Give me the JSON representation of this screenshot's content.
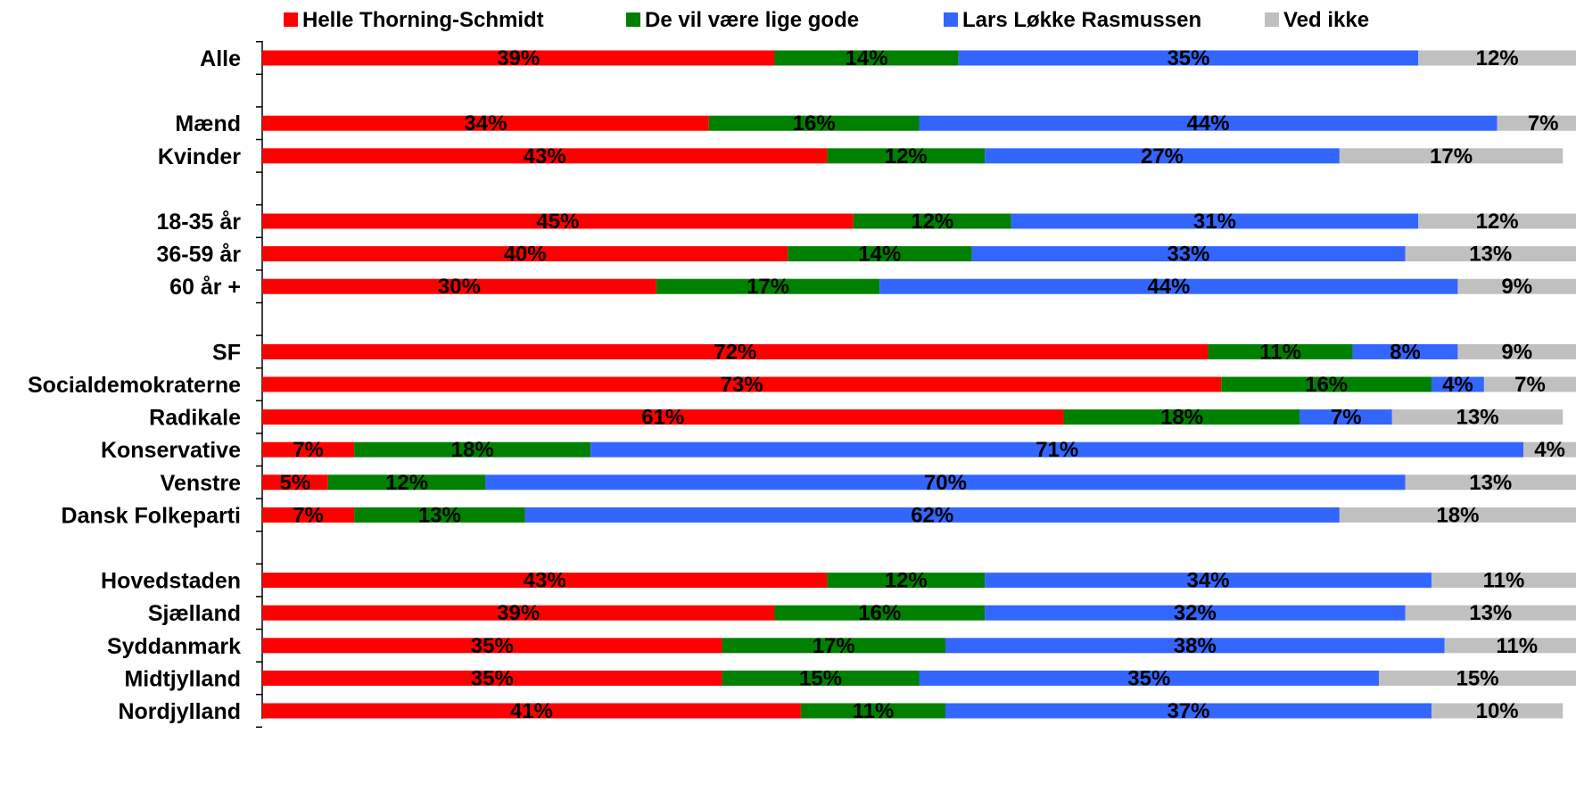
{
  "chart_data": {
    "type": "bar",
    "orientation": "horizontal",
    "stacked": "percent",
    "legend_position": "top",
    "grid": false,
    "xlim": [
      0,
      100
    ],
    "categories": [
      "Alle",
      "",
      "Mænd",
      "Kvinder",
      "",
      "18-35 år",
      "36-59 år",
      "60 år +",
      "",
      "SF",
      "Socialdemokraterne",
      "Radikale",
      "Konservative",
      "Venstre",
      "Dansk Folkeparti",
      "",
      "Hovedstaden",
      "Sjælland",
      "Syddanmark",
      "Midtjylland",
      "Nordjylland"
    ],
    "series": [
      {
        "name": "Helle Thorning-Schmidt",
        "color": "#ff0000",
        "values": [
          39,
          null,
          34,
          43,
          null,
          45,
          40,
          30,
          null,
          72,
          73,
          61,
          7,
          5,
          7,
          null,
          43,
          39,
          35,
          35,
          41
        ]
      },
      {
        "name": "De vil være lige gode",
        "color": "#008000",
        "values": [
          14,
          null,
          16,
          12,
          null,
          12,
          14,
          17,
          null,
          11,
          16,
          18,
          18,
          12,
          13,
          null,
          12,
          16,
          17,
          15,
          11
        ]
      },
      {
        "name": "Lars Løkke Rasmussen",
        "color": "#3366ff",
        "values": [
          35,
          null,
          44,
          27,
          null,
          31,
          33,
          44,
          null,
          8,
          4,
          7,
          71,
          70,
          62,
          null,
          34,
          32,
          38,
          35,
          37
        ]
      },
      {
        "name": "Ved ikke",
        "color": "#c0c0c0",
        "values": [
          12,
          null,
          7,
          17,
          null,
          12,
          13,
          9,
          null,
          9,
          7,
          13,
          4,
          13,
          18,
          null,
          11,
          13,
          11,
          15,
          10
        ]
      }
    ]
  }
}
